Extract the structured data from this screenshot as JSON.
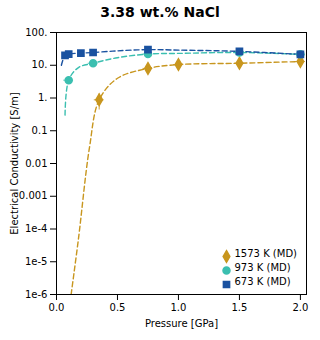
{
  "chart_data": {
    "type": "errorbar",
    "title": "3.38 wt.% NaCl",
    "xlabel": "Pressure [GPa]",
    "ylabel": "Electrical Conductivity [S/m]",
    "log": "y",
    "xlim": [
      0.0,
      2.05
    ],
    "xticks": [
      {
        "value": 0.0,
        "label": "0.0"
      },
      {
        "value": 0.5,
        "label": "0.5"
      },
      {
        "value": 1.0,
        "label": "1.0"
      },
      {
        "value": 1.5,
        "label": "1.5"
      },
      {
        "value": 2.0,
        "label": "2.0"
      }
    ],
    "ylim": [
      1e-06,
      100
    ],
    "yticks": [
      {
        "value": 1e-06,
        "label": "1e-6"
      },
      {
        "value": 1e-05,
        "label": "1e-5"
      },
      {
        "value": 0.0001,
        "label": "1e-4"
      },
      {
        "value": 0.001,
        "label": "0.001"
      },
      {
        "value": 0.01,
        "label": "0.01"
      },
      0.1,
      {
        "value": 1,
        "label": "1."
      },
      {
        "value": 10,
        "label": "10."
      },
      {
        "value": 100,
        "label": "100."
      }
    ],
    "legend": "lower right",
    "series": [
      {
        "name": "1573 K (MD)",
        "color": "#C8961E",
        "marker": "diamond",
        "line_style": "dashed",
        "x": [
          0.35,
          0.75,
          1.0,
          1.5,
          2.0
        ],
        "y": [
          0.88,
          8.0,
          10.5,
          11.5,
          13.0
        ],
        "yerr": [
          0.45,
          0.4,
          1.5,
          2.5,
          2.5
        ],
        "xerr": [
          0.04,
          0.04,
          0.04,
          0.04,
          0.04
        ],
        "curve_x": [
          0.12,
          0.18,
          0.27,
          0.35,
          0.5,
          0.75,
          1.0,
          1.5,
          2.0
        ],
        "curve_y": [
          1e-06,
          5e-05,
          0.03,
          0.88,
          4.0,
          8.0,
          10.5,
          11.5,
          13.0
        ]
      },
      {
        "name": "973 K (MD)",
        "color": "#3BBFB0",
        "marker": "circle",
        "line_style": "dashed",
        "x": [
          0.1,
          0.3,
          0.75,
          1.5,
          2.0
        ],
        "y": [
          3.5,
          11.5,
          22.0,
          24.5,
          21.5
        ],
        "yerr": [
          0.3,
          0.3,
          0.5,
          0.5,
          0.5
        ],
        "xerr": [
          0.04,
          0.04,
          0.04,
          0.04,
          0.04
        ],
        "curve_x": [
          0.07,
          0.1,
          0.18,
          0.3,
          0.5,
          0.75,
          1.0,
          1.5,
          2.0
        ],
        "curve_y": [
          0.3,
          3.5,
          8.5,
          11.5,
          17.0,
          22.0,
          23.0,
          24.5,
          21.5
        ]
      },
      {
        "name": "673 K (MD)",
        "color": "#1A52A0",
        "marker": "square",
        "line_style": "dashed",
        "x": [
          0.07,
          0.1,
          0.2,
          0.3,
          0.75,
          1.5,
          2.0
        ],
        "y": [
          20.0,
          22.0,
          23.5,
          24.5,
          30.0,
          26.5,
          21.5
        ],
        "yerr": [
          0.5,
          0.5,
          0.5,
          0.5,
          1.2,
          1.0,
          1.0
        ],
        "xerr": [
          0.02,
          0.02,
          0.02,
          0.02,
          0.02,
          0.02,
          0.02
        ],
        "curve_x": [
          0.04,
          0.07,
          0.1,
          0.2,
          0.3,
          0.5,
          0.75,
          1.0,
          1.5,
          2.0
        ],
        "curve_y": [
          10.0,
          20.0,
          22.0,
          23.5,
          24.5,
          27.5,
          30.0,
          29.0,
          26.5,
          21.5
        ]
      }
    ]
  }
}
